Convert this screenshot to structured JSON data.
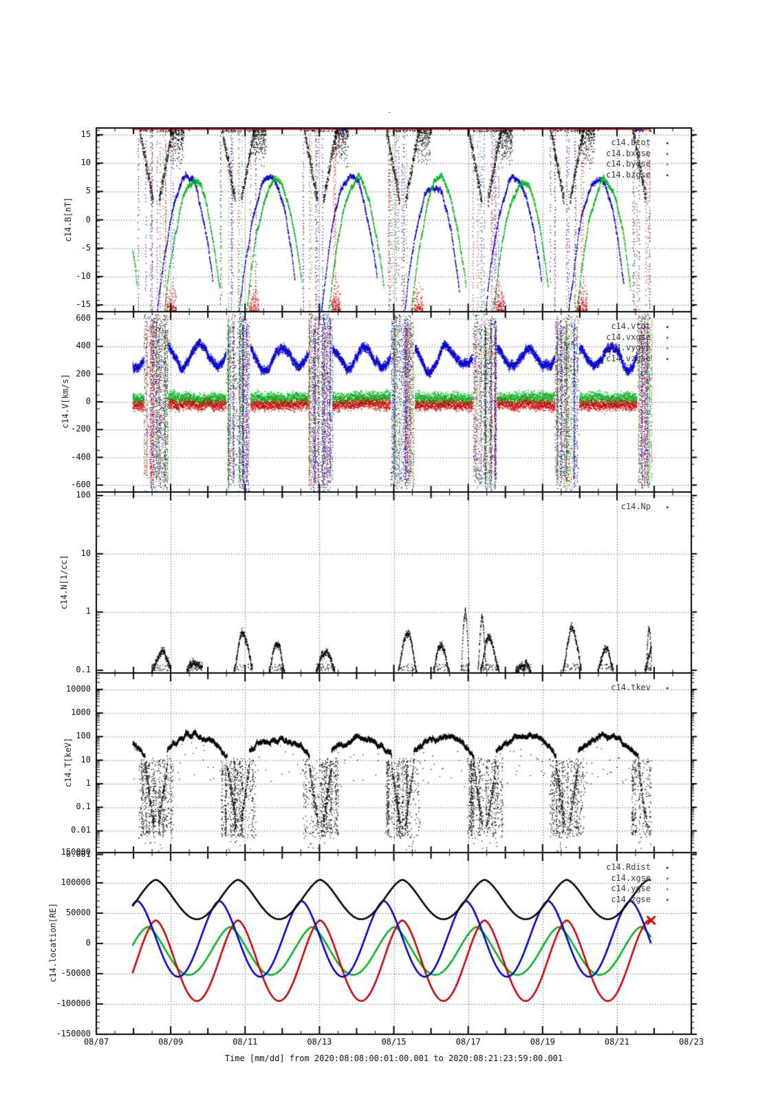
{
  "page": {
    "background": "#ffffff",
    "title_marker": "-"
  },
  "chart_data": {
    "type": "scatter",
    "title": "-",
    "x": {
      "title": "Time [mm/dd]  from 2020:08:08:00:01:00.001  to  2020:08:21:23:59:00.001",
      "ticks": [
        {
          "day": 7,
          "label": "08/07"
        },
        {
          "day": 9,
          "label": "08/09"
        },
        {
          "day": 11,
          "label": "08/11"
        },
        {
          "day": 13,
          "label": "08/13"
        },
        {
          "day": 15,
          "label": "08/15"
        },
        {
          "day": 17,
          "label": "08/17"
        },
        {
          "day": 19,
          "label": "08/19"
        },
        {
          "day": 21,
          "label": "08/21"
        },
        {
          "day": 23,
          "label": "08/23"
        }
      ],
      "day_start": 7,
      "day_end": 23,
      "data_start": 7.97,
      "data_end": 21.92,
      "grid": "dotted"
    },
    "orbit": {
      "perigee_first_day": 8.6,
      "period_days": 2.21
    },
    "colors": {
      "black": "#000000",
      "red": "#cc0000",
      "green": "#00b41e",
      "blue": "#0000cd"
    },
    "panels": [
      {
        "name": "B",
        "ylabel": "c14.B[nT]",
        "scale": "linear",
        "ymin": -16.2,
        "ymax": 16.2,
        "minor": 1,
        "yticks": [
          {
            "v": 15,
            "label": "15"
          },
          {
            "v": 10,
            "label": "10"
          },
          {
            "v": 5,
            "label": "5"
          },
          {
            "v": 0,
            "label": "0"
          },
          {
            "v": -5,
            "label": "-5"
          },
          {
            "v": -10,
            "label": "-10"
          },
          {
            "v": -15,
            "label": "-15"
          }
        ],
        "legend": [
          {
            "label": "c14.btot",
            "color": "black"
          },
          {
            "label": "c14.bxgse",
            "color": "red"
          },
          {
            "label": "c14.bygse",
            "color": "green"
          },
          {
            "label": "c14.bzgse",
            "color": "blue"
          }
        ],
        "features": {
          "arc_peak_blue": 7.3,
          "arc_peak_green": 6.6,
          "arc_halfwidth": 0.8,
          "clipped_top_value": 16.2,
          "clip_line_color": "red"
        }
      },
      {
        "name": "V",
        "ylabel": "c14.V[km/s]",
        "scale": "linear",
        "ymin": -650,
        "ymax": 650,
        "minor": 100,
        "yticks": [
          {
            "v": 600,
            "label": "600"
          },
          {
            "v": 400,
            "label": "400"
          },
          {
            "v": 200,
            "label": "200"
          },
          {
            "v": 0,
            "label": "0"
          },
          {
            "v": -200,
            "label": "-200"
          },
          {
            "v": -400,
            "label": "-400"
          },
          {
            "v": -600,
            "label": "-600"
          }
        ],
        "legend": [
          {
            "label": "c14.vtot",
            "color": "black"
          },
          {
            "label": "c14.vxgse",
            "color": "red"
          },
          {
            "label": "c14.vygse",
            "color": "green"
          },
          {
            "label": "c14.vzgse",
            "color": "blue"
          }
        ],
        "features": {
          "vz_band_mean": 330,
          "vy_band_mean": 32,
          "vx_band_mean": -18,
          "band_spread": 40,
          "burst_extent": 640
        }
      },
      {
        "name": "N",
        "ylabel": "c14.N[1/cc]",
        "scale": "log",
        "ymin": 0.09,
        "ymax": 115,
        "minor": 0,
        "yticks": [
          {
            "v": 100,
            "label": "100"
          },
          {
            "v": 10,
            "label": "10"
          },
          {
            "v": 1,
            "label": "1"
          },
          {
            "v": 0.1,
            "label": "0.1"
          }
        ],
        "legend": [
          {
            "label": "c14.Np",
            "color": "black"
          }
        ],
        "features": {
          "baseline": 0.1,
          "bump_peak_range": [
            0.18,
            0.55
          ],
          "spike_peak": 0.95,
          "spike_days": [
            16.9,
            17.35,
            21.85
          ]
        }
      },
      {
        "name": "T",
        "ylabel": "c14.T[keV]",
        "scale": "log",
        "ymin": 0.0012,
        "ymax": 50000,
        "minor": 0,
        "yticks": [
          {
            "v": 10000,
            "label": "10000"
          },
          {
            "v": 1000,
            "label": "1000"
          },
          {
            "v": 100,
            "label": "100"
          },
          {
            "v": 10,
            "label": "10"
          },
          {
            "v": 1,
            "label": "1"
          },
          {
            "v": 0.1,
            "label": "0.1"
          },
          {
            "v": 0.01,
            "label": "0.01"
          },
          {
            "v": 0.001,
            "label": "0.001"
          }
        ],
        "legend": [
          {
            "label": "c14.tkev",
            "color": "black"
          }
        ],
        "features": {
          "arc_top_keV": 100,
          "arc_low_keV": 8,
          "diffuse_log_range": [
            -2.2,
            1.0
          ]
        }
      },
      {
        "name": "location",
        "ylabel": "c14.location[RE]",
        "scale": "linear",
        "ymin": -150000,
        "ymax": 150000,
        "minor": 10000,
        "yticks": [
          {
            "v": 150000,
            "label": "150000"
          },
          {
            "v": 100000,
            "label": "100000"
          },
          {
            "v": 50000,
            "label": "50000"
          },
          {
            "v": 0,
            "label": "0"
          },
          {
            "v": -50000,
            "label": "-50000"
          },
          {
            "v": -100000,
            "label": "-100000"
          },
          {
            "v": -150000,
            "label": "-150000"
          }
        ],
        "legend": [
          {
            "label": "c14.Rdist",
            "color": "black"
          },
          {
            "label": "c14.xgse",
            "color": "red"
          },
          {
            "label": "c14.ygse",
            "color": "green"
          },
          {
            "label": "c14.zgse",
            "color": "blue"
          }
        ],
        "series": {
          "rdist": {
            "color": "black",
            "min": 40000,
            "max": 105000,
            "shape": 0.8,
            "peak_offset": 0
          },
          "xgse": {
            "color": "red",
            "min": -95000,
            "max": 38000,
            "shape": 0.85,
            "peak_offset": 0
          },
          "ygse": {
            "color": "green",
            "min": -52000,
            "max": 27000,
            "shape": 0.8,
            "peak_offset": -0.22
          },
          "zgse": {
            "color": "blue",
            "min": -55000,
            "max": 70000,
            "shape": 0.85,
            "peak_offset": -0.5
          }
        },
        "end_marker": {
          "day": 21.92,
          "value": 38000,
          "color": "red",
          "shape": "x"
        }
      }
    ]
  }
}
